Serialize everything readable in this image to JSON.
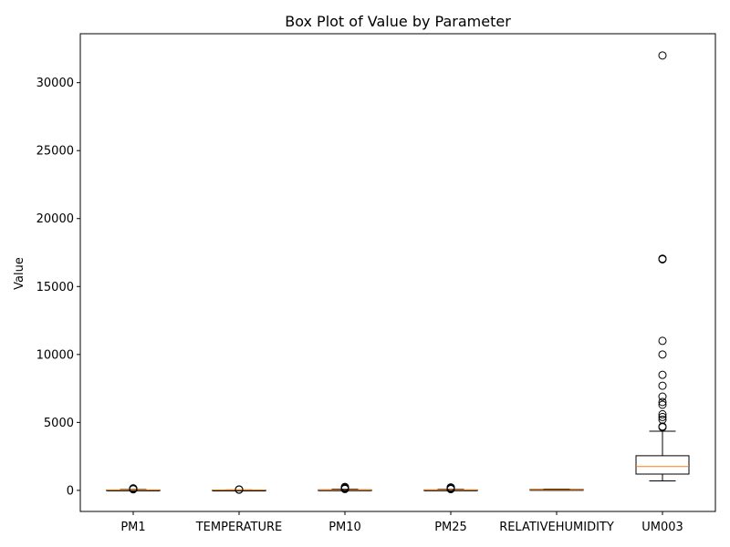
{
  "chart_data": {
    "type": "box",
    "title": "Box Plot of Value by Parameter",
    "xlabel": "",
    "ylabel": "Value",
    "ylim": [
      -1550,
      33600
    ],
    "yticks": [
      0,
      5000,
      10000,
      15000,
      20000,
      25000,
      30000
    ],
    "grid": false,
    "categories": [
      "PM1",
      "TEMPERATURE",
      "PM10",
      "PM25",
      "RELATIVEHUMIDITY",
      "UM003"
    ],
    "boxes": [
      {
        "category": "PM1",
        "whislo": 0,
        "q1": 10,
        "med": 18,
        "q3": 30,
        "whishi": 60,
        "fliers": [
          80,
          100,
          120,
          150
        ]
      },
      {
        "category": "TEMPERATURE",
        "whislo": 5,
        "q1": 15,
        "med": 20,
        "q3": 25,
        "whishi": 35,
        "fliers": [
          50,
          70
        ]
      },
      {
        "category": "PM10",
        "whislo": 0,
        "q1": 12,
        "med": 22,
        "q3": 38,
        "whishi": 75,
        "fliers": [
          100,
          130,
          160,
          200,
          250
        ]
      },
      {
        "category": "PM25",
        "whislo": 0,
        "q1": 11,
        "med": 20,
        "q3": 34,
        "whishi": 68,
        "fliers": [
          90,
          120,
          150,
          180,
          220
        ]
      },
      {
        "category": "RELATIVEHUMIDITY",
        "whislo": 15,
        "q1": 40,
        "med": 55,
        "q3": 70,
        "whishi": 95,
        "fliers": []
      },
      {
        "category": "UM003",
        "whislo": 700,
        "q1": 1200,
        "med": 1750,
        "q3": 2550,
        "whishi": 4350,
        "fliers": [
          4650,
          4700,
          5200,
          5400,
          5600,
          6300,
          6500,
          6900,
          7700,
          8500,
          10000,
          11000,
          17000,
          17050,
          32000
        ]
      }
    ],
    "colors": {
      "box": "#000000",
      "median": "#ff7f0e",
      "flier": "#000000"
    }
  }
}
